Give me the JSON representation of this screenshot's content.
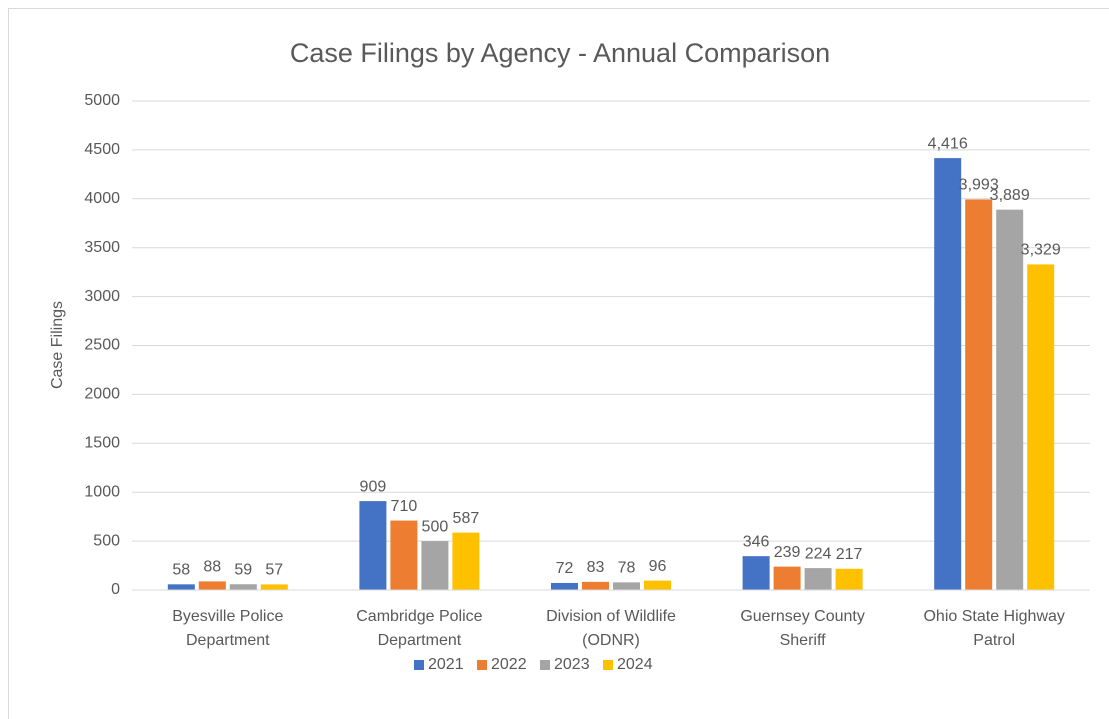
{
  "chart_data": {
    "type": "bar",
    "title": "Case Filings by Agency - Annual Comparison",
    "y_label": "Case Filings",
    "categories": [
      "Byesville Police Department",
      "Cambridge Police Department",
      "Division of Wildlife (ODNR)",
      "Guernsey County Sheriff",
      "Ohio State Highway Patrol"
    ],
    "series": [
      {
        "name": "2021",
        "color": "#4472c4",
        "values": [
          58,
          909,
          72,
          346,
          4416
        ],
        "value_labels": [
          "58",
          "909",
          "72",
          "346",
          "4,416"
        ]
      },
      {
        "name": "2022",
        "color": "#ed7d31",
        "values": [
          88,
          710,
          83,
          239,
          3993
        ],
        "value_labels": [
          "88",
          "710",
          "83",
          "239",
          "3,993"
        ]
      },
      {
        "name": "2023",
        "color": "#a5a5a5",
        "values": [
          59,
          500,
          78,
          224,
          3889
        ],
        "value_labels": [
          "59",
          "500",
          "78",
          "224",
          "3,889"
        ]
      },
      {
        "name": "2024",
        "color": "#ffc000",
        "values": [
          57,
          587,
          96,
          217,
          3329
        ],
        "value_labels": [
          "57",
          "587",
          "96",
          "217",
          "3,329"
        ]
      }
    ],
    "ylim": [
      0,
      5000
    ],
    "yticks": [
      0,
      500,
      1000,
      1500,
      2000,
      2500,
      3000,
      3500,
      4000,
      4500,
      5000
    ],
    "grid": true,
    "legend": "bottom"
  }
}
